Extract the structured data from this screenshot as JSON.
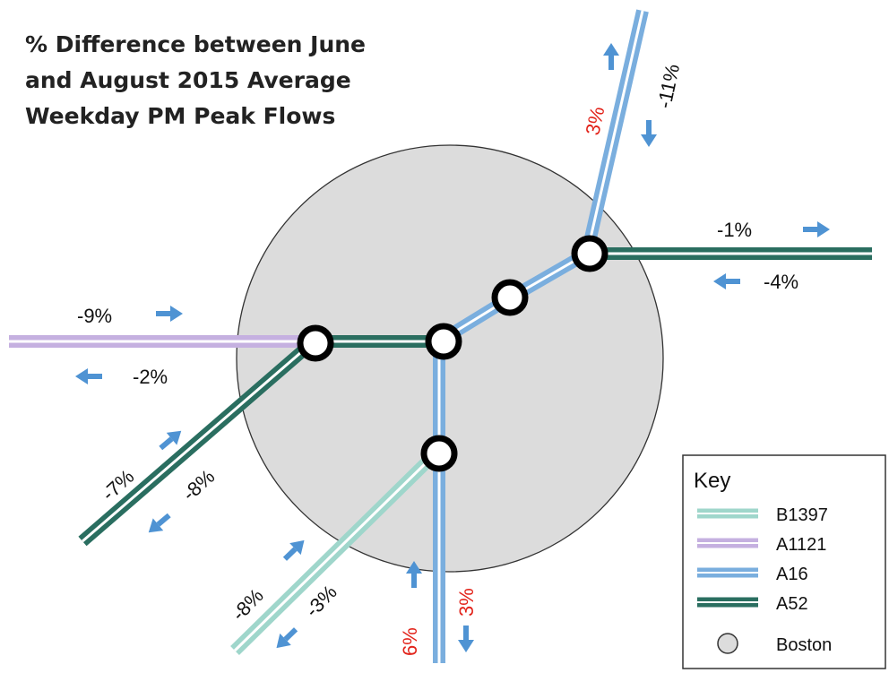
{
  "title": {
    "line1": "% Difference between June",
    "line2": "and August 2015 Average",
    "line3": "Weekday PM Peak Flows"
  },
  "colors": {
    "b1397": "#9fd6cb",
    "a1121": "#c5b0e0",
    "a16": "#7aaede",
    "a52": "#2a6e60",
    "arrow": "#4f93d3",
    "boston": "#dcdcdc",
    "red_label": "#e2231a"
  },
  "flows": {
    "north_up": "3%",
    "north_down": "-11%",
    "east_out": "-1%",
    "east_in": "-4%",
    "west_out": "-9%",
    "west_in": "-2%",
    "southwest_in": "-7%",
    "southwest_out": "-8%",
    "south_in": "6%",
    "south_out": "3%",
    "b1397_in": "-8%",
    "b1397_out": "-3%"
  },
  "key": {
    "title": "Key",
    "items": [
      {
        "label": "B1397",
        "color": "#9fd6cb"
      },
      {
        "label": "A1121",
        "color": "#c5b0e0"
      },
      {
        "label": "A16",
        "color": "#7aaede"
      },
      {
        "label": "A52",
        "color": "#2a6e60"
      },
      {
        "label": "Boston",
        "color": "#dcdcdc"
      }
    ]
  }
}
